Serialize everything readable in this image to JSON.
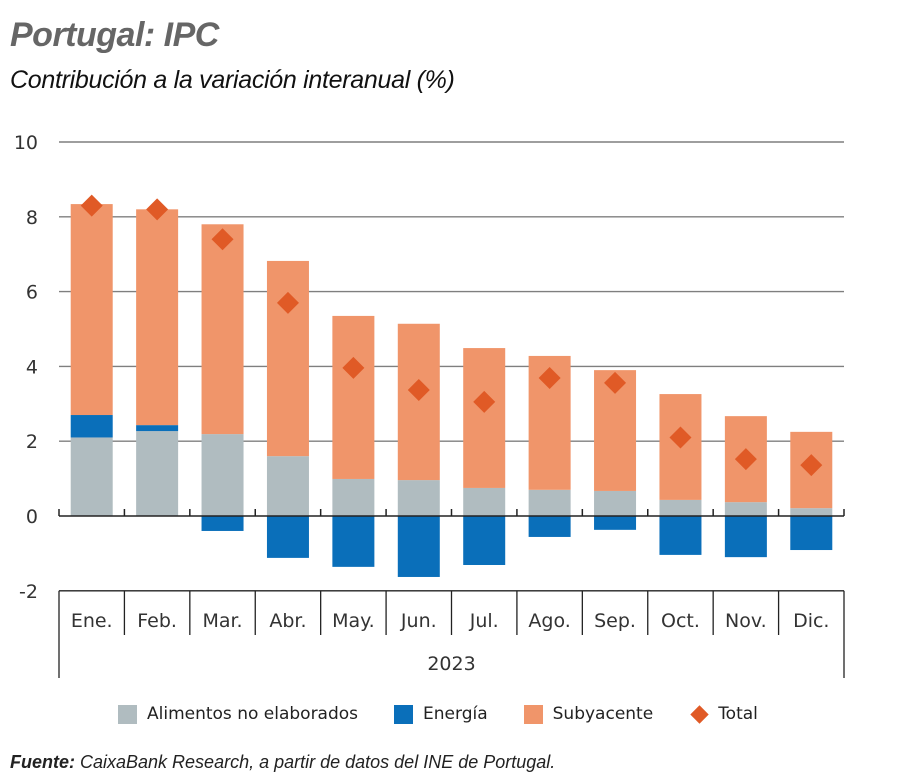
{
  "header": {
    "title": "Portugal: IPC",
    "subtitle": "Contribución a la variación interanual (%)"
  },
  "colors": {
    "alimentos": "#b0bcc0",
    "energia": "#0a6fba",
    "subyacente": "#f0956a",
    "total": "#e05a26",
    "grid": "#7f7f7f",
    "axis": "#222222"
  },
  "chart_data": {
    "type": "bar",
    "stacked": true,
    "title": "Portugal: IPC",
    "subtitle": "Contribución a la variación interanual (%)",
    "xlabel": "2023",
    "ylabel": "",
    "ylim": [
      -2,
      10
    ],
    "yticks": [
      10,
      8,
      6,
      4,
      2,
      0,
      -2
    ],
    "grid": true,
    "legend_position": "bottom",
    "categories": [
      "Ene.",
      "Feb.",
      "Mar.",
      "Abr.",
      "May.",
      "Jun.",
      "Jul.",
      "Ago.",
      "Sep.",
      "Oct.",
      "Nov.",
      "Dic."
    ],
    "group_label": "2023",
    "series": [
      {
        "name": "Alimentos no elaborados",
        "type": "bar",
        "color_key": "alimentos",
        "values": [
          2.1,
          2.27,
          2.19,
          1.6,
          0.99,
          0.96,
          0.75,
          0.7,
          0.67,
          0.43,
          0.37,
          0.21
        ]
      },
      {
        "name": "Energía",
        "type": "bar",
        "color_key": "energia",
        "values": [
          0.6,
          0.16,
          -0.4,
          -1.12,
          -1.36,
          -1.63,
          -1.31,
          -0.56,
          -0.37,
          -1.04,
          -1.1,
          -0.91
        ]
      },
      {
        "name": "Subyacente",
        "type": "bar",
        "color_key": "subyacente",
        "values": [
          5.64,
          5.77,
          5.61,
          5.22,
          4.36,
          4.18,
          3.74,
          3.58,
          3.23,
          2.83,
          2.3,
          2.04
        ]
      },
      {
        "name": "Total",
        "type": "marker",
        "marker": "diamond",
        "color_key": "total",
        "values": [
          8.3,
          8.2,
          7.4,
          5.7,
          3.96,
          3.37,
          3.05,
          3.69,
          3.56,
          2.1,
          1.52,
          1.36
        ]
      }
    ]
  },
  "legend": [
    {
      "label": "Alimentos no elaborados",
      "color_key": "alimentos",
      "shape": "square"
    },
    {
      "label": "Energía",
      "color_key": "energia",
      "shape": "square"
    },
    {
      "label": "Subyacente",
      "color_key": "subyacente",
      "shape": "square"
    },
    {
      "label": "Total",
      "color_key": "total",
      "shape": "diamond"
    }
  ],
  "source": {
    "label": "Fuente:",
    "text": " CaixaBank Research, a partir de datos del INE de Portugal."
  }
}
